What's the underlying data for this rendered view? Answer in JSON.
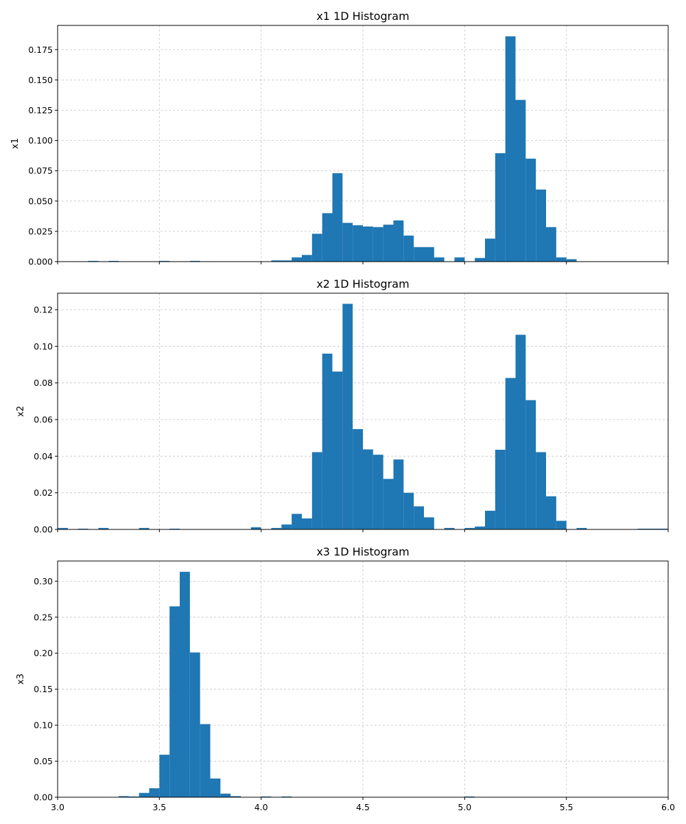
{
  "chart_data": [
    {
      "type": "bar",
      "title": "x1 1D Histogram",
      "xlabel": "",
      "ylabel": "x1",
      "xlim": [
        3.0,
        6.0
      ],
      "ylim": [
        0,
        0.195
      ],
      "bin_width": 0.05,
      "yticks": [
        "0.000",
        "0.025",
        "0.050",
        "0.075",
        "0.100",
        "0.125",
        "0.150",
        "0.175"
      ],
      "ytick_values": [
        0,
        0.025,
        0.05,
        0.075,
        0.1,
        0.125,
        0.15,
        0.175
      ],
      "xticks": [],
      "xtick_values": [
        3.0,
        3.5,
        4.0,
        4.5,
        5.0,
        5.5,
        6.0
      ],
      "grid": true,
      "color": "#1f77b4",
      "bins": [
        {
          "x": 3.15,
          "value": 0.0006
        },
        {
          "x": 3.25,
          "value": 0.0006
        },
        {
          "x": 3.5,
          "value": 0.0006
        },
        {
          "x": 3.65,
          "value": 0.0006
        },
        {
          "x": 4.05,
          "value": 0.001
        },
        {
          "x": 4.1,
          "value": 0.001
        },
        {
          "x": 4.15,
          "value": 0.0035
        },
        {
          "x": 4.2,
          "value": 0.0055
        },
        {
          "x": 4.25,
          "value": 0.023
        },
        {
          "x": 4.3,
          "value": 0.04
        },
        {
          "x": 4.35,
          "value": 0.073
        },
        {
          "x": 4.4,
          "value": 0.032
        },
        {
          "x": 4.45,
          "value": 0.03
        },
        {
          "x": 4.5,
          "value": 0.029
        },
        {
          "x": 4.55,
          "value": 0.0285
        },
        {
          "x": 4.6,
          "value": 0.0305
        },
        {
          "x": 4.65,
          "value": 0.034
        },
        {
          "x": 4.7,
          "value": 0.0215
        },
        {
          "x": 4.75,
          "value": 0.012
        },
        {
          "x": 4.8,
          "value": 0.012
        },
        {
          "x": 4.85,
          "value": 0.0035
        },
        {
          "x": 4.95,
          "value": 0.0035
        },
        {
          "x": 5.05,
          "value": 0.003
        },
        {
          "x": 5.1,
          "value": 0.019
        },
        {
          "x": 5.15,
          "value": 0.0895
        },
        {
          "x": 5.2,
          "value": 0.186
        },
        {
          "x": 5.25,
          "value": 0.1335
        },
        {
          "x": 5.3,
          "value": 0.085
        },
        {
          "x": 5.35,
          "value": 0.0595
        },
        {
          "x": 5.4,
          "value": 0.0285
        },
        {
          "x": 5.45,
          "value": 0.0035
        },
        {
          "x": 5.5,
          "value": 0.002
        }
      ]
    },
    {
      "type": "bar",
      "title": "x2 1D Histogram",
      "xlabel": "",
      "ylabel": "x2",
      "xlim": [
        3.0,
        6.0
      ],
      "ylim": [
        0,
        0.129
      ],
      "bin_width": 0.05,
      "yticks": [
        "0.00",
        "0.02",
        "0.04",
        "0.06",
        "0.08",
        "0.10",
        "0.12"
      ],
      "ytick_values": [
        0,
        0.02,
        0.04,
        0.06,
        0.08,
        0.1,
        0.12
      ],
      "xticks": [],
      "xtick_values": [
        3.0,
        3.5,
        4.0,
        4.5,
        5.0,
        5.5,
        6.0
      ],
      "grid": true,
      "color": "#1f77b4",
      "bins": [
        {
          "x": 3.0,
          "value": 0.0008
        },
        {
          "x": 3.1,
          "value": 0.0004
        },
        {
          "x": 3.2,
          "value": 0.0008
        },
        {
          "x": 3.4,
          "value": 0.0008
        },
        {
          "x": 3.55,
          "value": 0.0004
        },
        {
          "x": 3.95,
          "value": 0.0012
        },
        {
          "x": 4.05,
          "value": 0.0008
        },
        {
          "x": 4.1,
          "value": 0.0027
        },
        {
          "x": 4.15,
          "value": 0.0085
        },
        {
          "x": 4.2,
          "value": 0.006
        },
        {
          "x": 4.25,
          "value": 0.0422
        },
        {
          "x": 4.3,
          "value": 0.096
        },
        {
          "x": 4.35,
          "value": 0.0862
        },
        {
          "x": 4.4,
          "value": 0.1232
        },
        {
          "x": 4.45,
          "value": 0.0548
        },
        {
          "x": 4.5,
          "value": 0.0437
        },
        {
          "x": 4.55,
          "value": 0.0408
        },
        {
          "x": 4.6,
          "value": 0.0276
        },
        {
          "x": 4.65,
          "value": 0.0382
        },
        {
          "x": 4.7,
          "value": 0.02
        },
        {
          "x": 4.75,
          "value": 0.0126
        },
        {
          "x": 4.8,
          "value": 0.0066
        },
        {
          "x": 4.9,
          "value": 0.0008
        },
        {
          "x": 5.0,
          "value": 0.0008
        },
        {
          "x": 5.05,
          "value": 0.0016
        },
        {
          "x": 5.1,
          "value": 0.0102
        },
        {
          "x": 5.15,
          "value": 0.0435
        },
        {
          "x": 5.2,
          "value": 0.0827
        },
        {
          "x": 5.25,
          "value": 0.1063
        },
        {
          "x": 5.3,
          "value": 0.0706
        },
        {
          "x": 5.35,
          "value": 0.0422
        },
        {
          "x": 5.4,
          "value": 0.0181
        },
        {
          "x": 5.45,
          "value": 0.0047
        },
        {
          "x": 5.55,
          "value": 0.0008
        },
        {
          "x": 5.85,
          "value": 0.0004
        },
        {
          "x": 5.9,
          "value": 0.0004
        },
        {
          "x": 5.95,
          "value": 0.0004
        }
      ]
    },
    {
      "type": "bar",
      "title": "x3 1D Histogram",
      "xlabel": "",
      "ylabel": "x3",
      "xlim": [
        3.0,
        6.0
      ],
      "ylim": [
        0,
        0.328
      ],
      "bin_width": 0.05,
      "yticks": [
        "0.00",
        "0.05",
        "0.10",
        "0.15",
        "0.20",
        "0.25",
        "0.30"
      ],
      "ytick_values": [
        0,
        0.05,
        0.1,
        0.15,
        0.2,
        0.25,
        0.3
      ],
      "xticks": [
        "3.0",
        "3.5",
        "4.0",
        "4.5",
        "5.0",
        "5.5",
        "6.0"
      ],
      "xtick_values": [
        3.0,
        3.5,
        4.0,
        4.5,
        5.0,
        5.5,
        6.0
      ],
      "grid": true,
      "color": "#1f77b4",
      "bins": [
        {
          "x": 3.3,
          "value": 0.0015
        },
        {
          "x": 3.35,
          "value": 0.001
        },
        {
          "x": 3.4,
          "value": 0.006
        },
        {
          "x": 3.45,
          "value": 0.0125
        },
        {
          "x": 3.5,
          "value": 0.059
        },
        {
          "x": 3.55,
          "value": 0.265
        },
        {
          "x": 3.6,
          "value": 0.313
        },
        {
          "x": 3.65,
          "value": 0.201
        },
        {
          "x": 3.7,
          "value": 0.1015
        },
        {
          "x": 3.75,
          "value": 0.026
        },
        {
          "x": 3.8,
          "value": 0.005
        },
        {
          "x": 3.85,
          "value": 0.0015
        },
        {
          "x": 4.0,
          "value": 0.001
        },
        {
          "x": 4.1,
          "value": 0.001
        },
        {
          "x": 5.0,
          "value": 0.001
        }
      ]
    }
  ]
}
